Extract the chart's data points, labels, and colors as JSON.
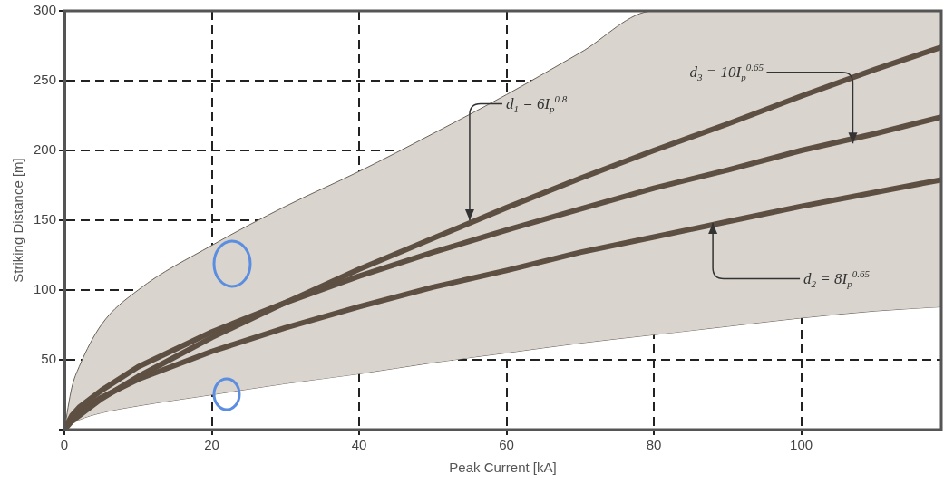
{
  "chart_data": {
    "type": "line",
    "xlabel": "Peak Current [kA]",
    "ylabel": "Striking Distance [m]",
    "x": [
      0,
      1,
      2,
      5,
      10,
      20,
      30,
      40,
      50,
      60,
      70,
      80,
      90,
      100,
      110,
      119
    ],
    "series": [
      {
        "type": "area",
        "color": "#d9d5ce",
        "values": [
          0,
          30,
          45,
          75,
          100,
          132,
          160,
          185,
          212,
          240,
          270,
          300,
          300,
          300,
          300,
          300
        ]
      },
      {
        "type": "line",
        "color": "#6b6259",
        "values": [
          0,
          4,
          7,
          12,
          17,
          25,
          33,
          40,
          48,
          55,
          62,
          68,
          74,
          80,
          85,
          88
        ]
      },
      {
        "type": "line",
        "color": "#5e4f43",
        "values": [
          0,
          6,
          10,
          22,
          38,
          66,
          91,
          115,
          137,
          159,
          180,
          200,
          219,
          239,
          258,
          274
        ]
      },
      {
        "type": "line",
        "color": "#5e4f43",
        "values": [
          0,
          10,
          16,
          28,
          45,
          70,
          91,
          110,
          127,
          143,
          158,
          173,
          186,
          200,
          212,
          224
        ]
      },
      {
        "type": "line",
        "color": "#5e4f43",
        "values": [
          0,
          8,
          13,
          23,
          36,
          56,
          73,
          88,
          102,
          114,
          127,
          138,
          149,
          160,
          170,
          179
        ]
      }
    ],
    "xlim": [
      0,
      119
    ],
    "xticks": [
      0,
      20,
      40,
      60,
      80,
      100
    ],
    "ylim": [
      0,
      300
    ],
    "yticks": [
      {
        "value": 0,
        "label": null
      },
      50,
      100,
      150,
      200,
      250,
      300
    ],
    "grid": true,
    "legend": false,
    "annotations": [
      {
        "text": "d$_{1}$ = 6I$_{p}$$^{0.8}$",
        "x": 55,
        "y": 150
      },
      {
        "text": "d$_{3}$ = 10I$_{p}$$^{0.65}$",
        "x": 107,
        "y": 205
      },
      {
        "text": "d$_{2}$ = 8I$_{p}$$^{0.65}$",
        "x": 88,
        "y": 148
      }
    ]
  }
}
